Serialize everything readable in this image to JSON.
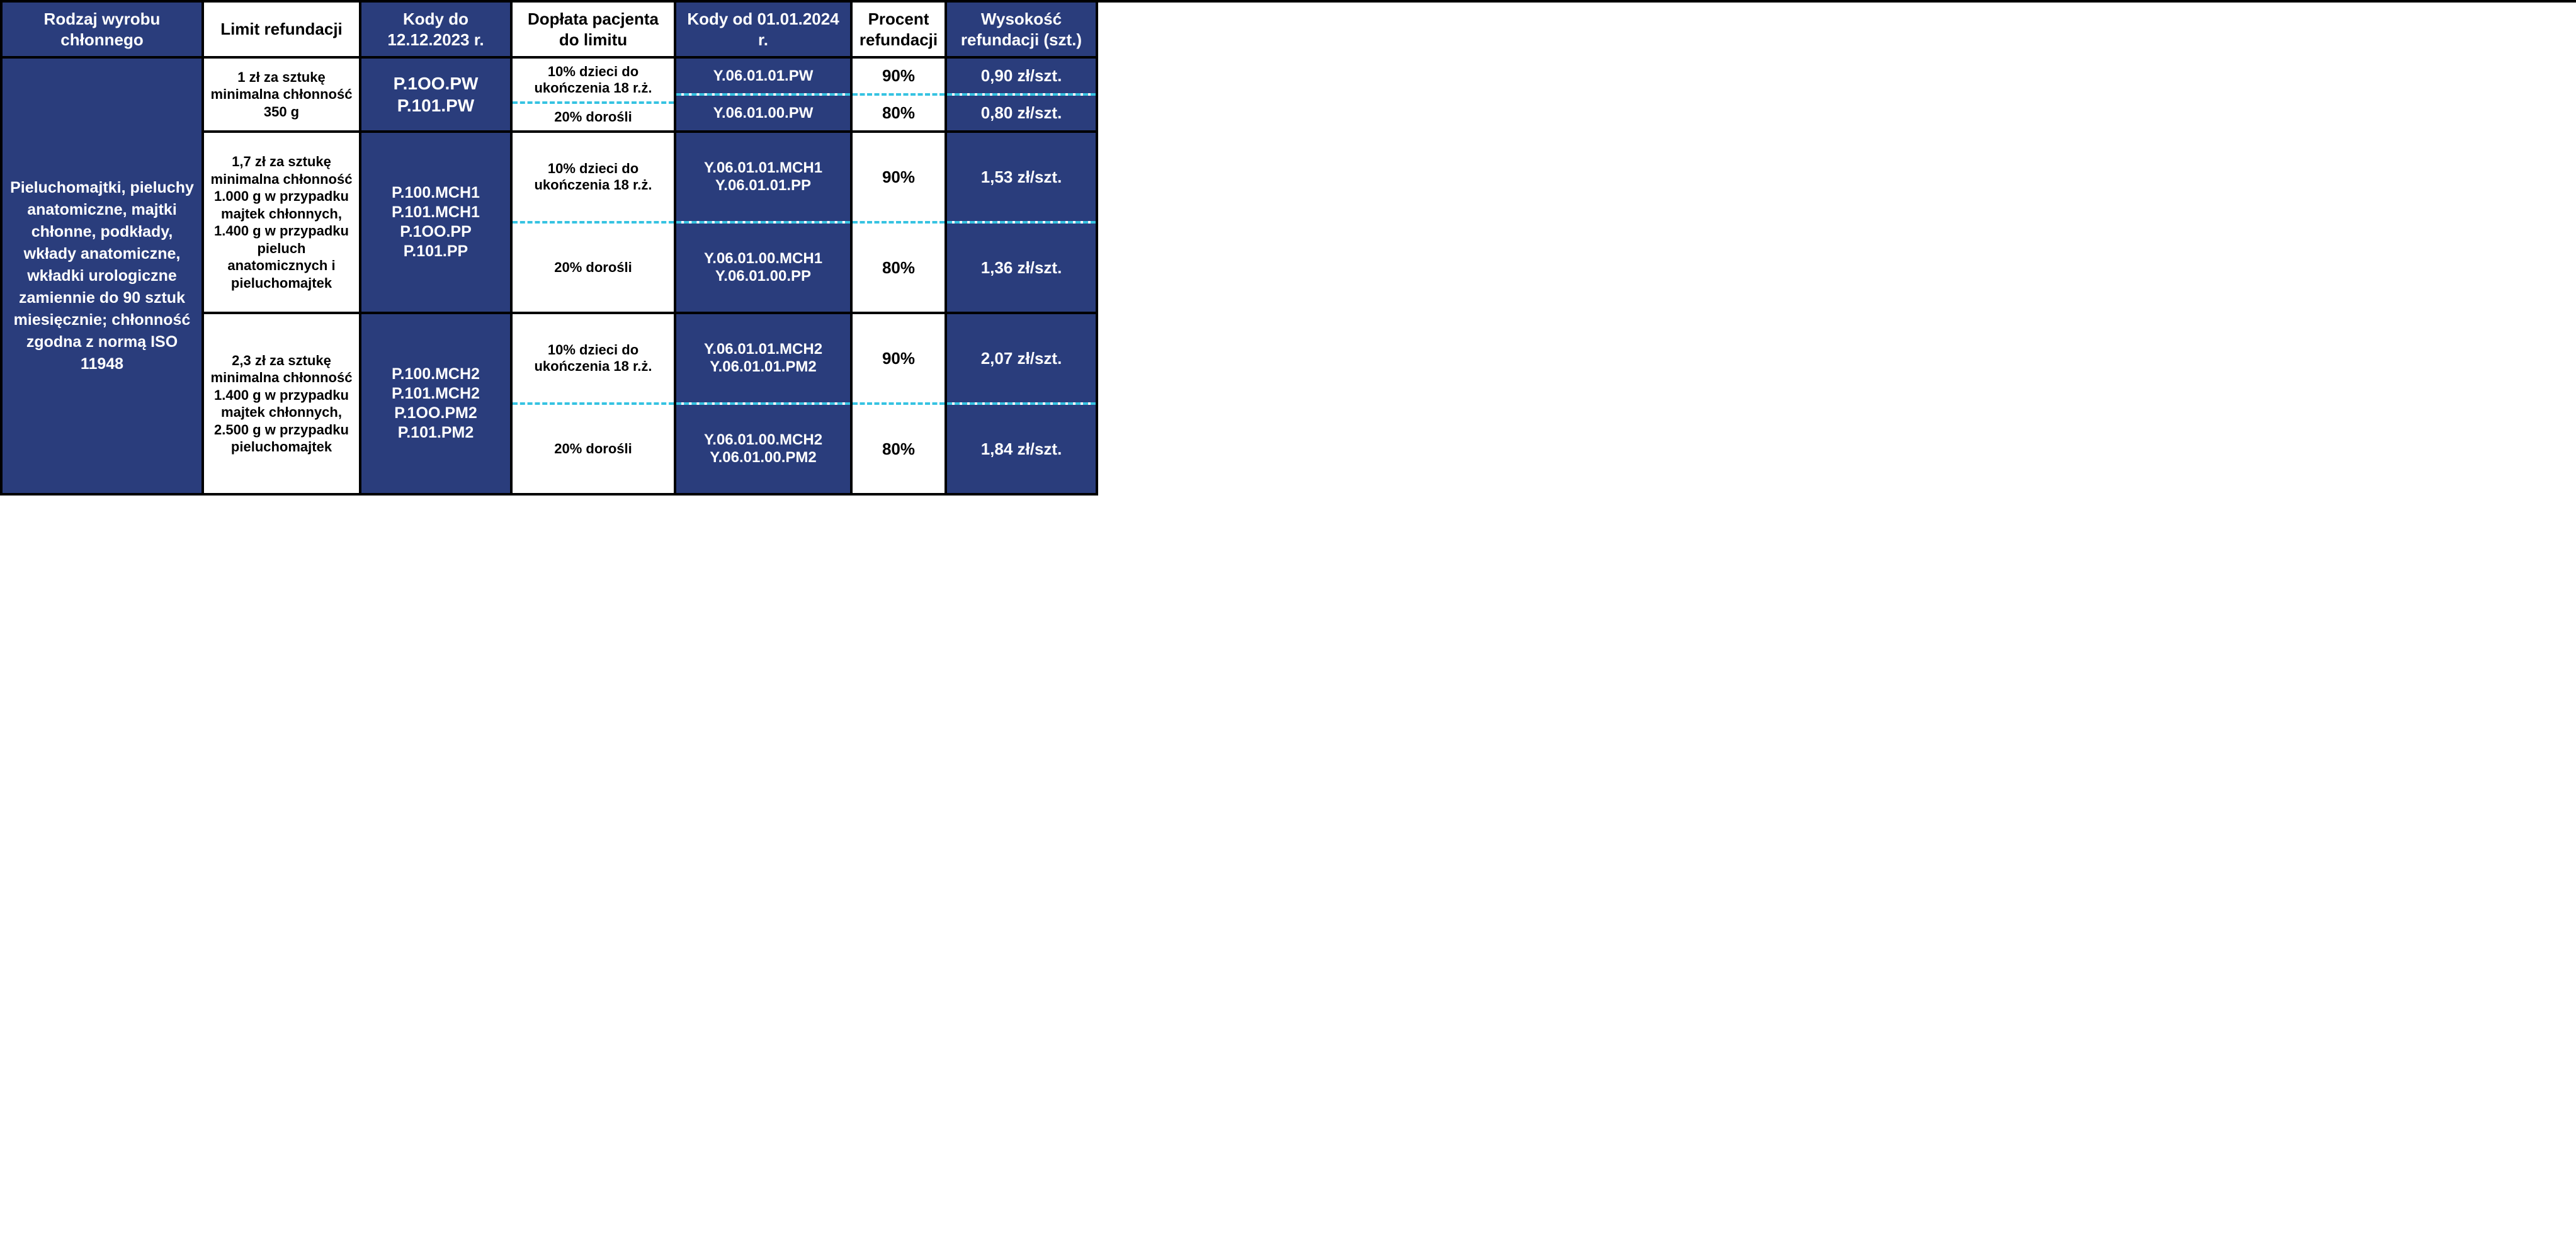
{
  "colors": {
    "navy": "#2a3d7c",
    "white": "#ffffff",
    "black": "#000000",
    "dash": "#36c3e2"
  },
  "headers": {
    "col1": "Rodzaj wyrobu chłonnego",
    "col2": "Limit refundacji",
    "col3": "Kody do 12.12.2023 r.",
    "col4": "Dopłata pacjenta do limitu",
    "col5": "Kody od 01.01.2024 r.",
    "col6": "Procent refundacji",
    "col7": "Wysokość refundacji (szt.)"
  },
  "product_description": "Pieluchomajtki, pieluchy anatomiczne, majtki chłonne, podkłady, wkłady anatomiczne, wkładki urologiczne zamiennie do 90 sztuk miesięcznie; chłonność zgodna z normą ISO 11948",
  "rows": [
    {
      "limit": "1 zł za sztukę minimalna chłonność 350 g",
      "codes_old": "P.1OO.PW\nP.101.PW",
      "children": {
        "doplata": "10% dzieci do ukończenia 18 r.ż.",
        "kody": "Y.06.01.01.PW",
        "procent": "90%",
        "wysokosc": "0,90 zł/szt."
      },
      "adults": {
        "doplata": "20% dorośli",
        "kody": "Y.06.01.00.PW",
        "procent": "80%",
        "wysokosc": "0,80 zł/szt."
      }
    },
    {
      "limit": "1,7 zł za sztukę minimalna chłonność 1.000 g w przypadku majtek chłonnych, 1.400 g w przypadku pieluch anatomicznych i pieluchomajtek",
      "codes_old": "P.100.MCH1\nP.101.MCH1\nP.1OO.PP\nP.101.PP",
      "children": {
        "doplata": "10% dzieci do ukończenia 18 r.ż.",
        "kody": "Y.06.01.01.MCH1\nY.06.01.01.PP",
        "procent": "90%",
        "wysokosc": "1,53 zł/szt."
      },
      "adults": {
        "doplata": "20% dorośli",
        "kody": "Y.06.01.00.MCH1\nY.06.01.00.PP",
        "procent": "80%",
        "wysokosc": "1,36 zł/szt."
      }
    },
    {
      "limit": "2,3 zł za sztukę minimalna chłonność 1.400 g w przypadku majtek chłonnych, 2.500 g w przypadku pieluchomajtek",
      "codes_old": "P.100.MCH2\nP.101.MCH2\nP.1OO.PM2\nP.101.PM2",
      "children": {
        "doplata": "10% dzieci do ukończenia 18 r.ż.",
        "kody": "Y.06.01.01.MCH2\nY.06.01.01.PM2",
        "procent": "90%",
        "wysokosc": "2,07 zł/szt."
      },
      "adults": {
        "doplata": "20% dorośli",
        "kody": "Y.06.01.00.MCH2\nY.06.01.00.PM2",
        "procent": "80%",
        "wysokosc": "1,84 zł/szt."
      }
    }
  ]
}
